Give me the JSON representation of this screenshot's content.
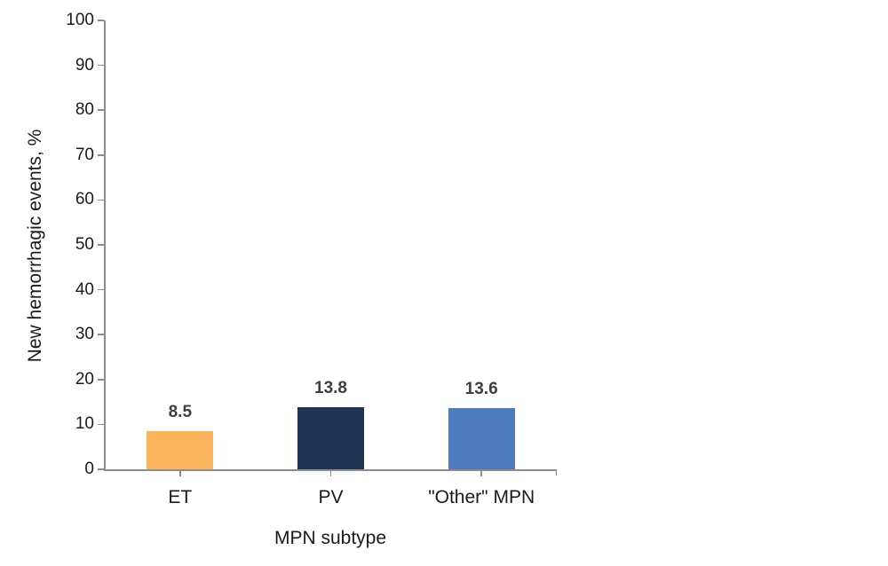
{
  "chart_data": {
    "type": "bar",
    "categories": [
      "ET",
      "PV",
      "\"Other\" MPN"
    ],
    "values": [
      8.5,
      13.8,
      13.6
    ],
    "value_labels": [
      "8.5",
      "13.8",
      "13.6"
    ],
    "bar_colors": [
      "#FBB45C",
      "#203456",
      "#4E7CBE"
    ],
    "title": "",
    "xlabel": "MPN subtype",
    "ylabel": "New hemorrhagic events, %",
    "ylim": [
      0,
      100
    ],
    "yticks": [
      0,
      10,
      20,
      30,
      40,
      50,
      60,
      70,
      80,
      90,
      100
    ],
    "grid": false,
    "legend_position": "none",
    "axis_color": "#8C8C8C",
    "value_label_color": "#3F3F3F",
    "tick_label_color": "#1a1a1a"
  }
}
